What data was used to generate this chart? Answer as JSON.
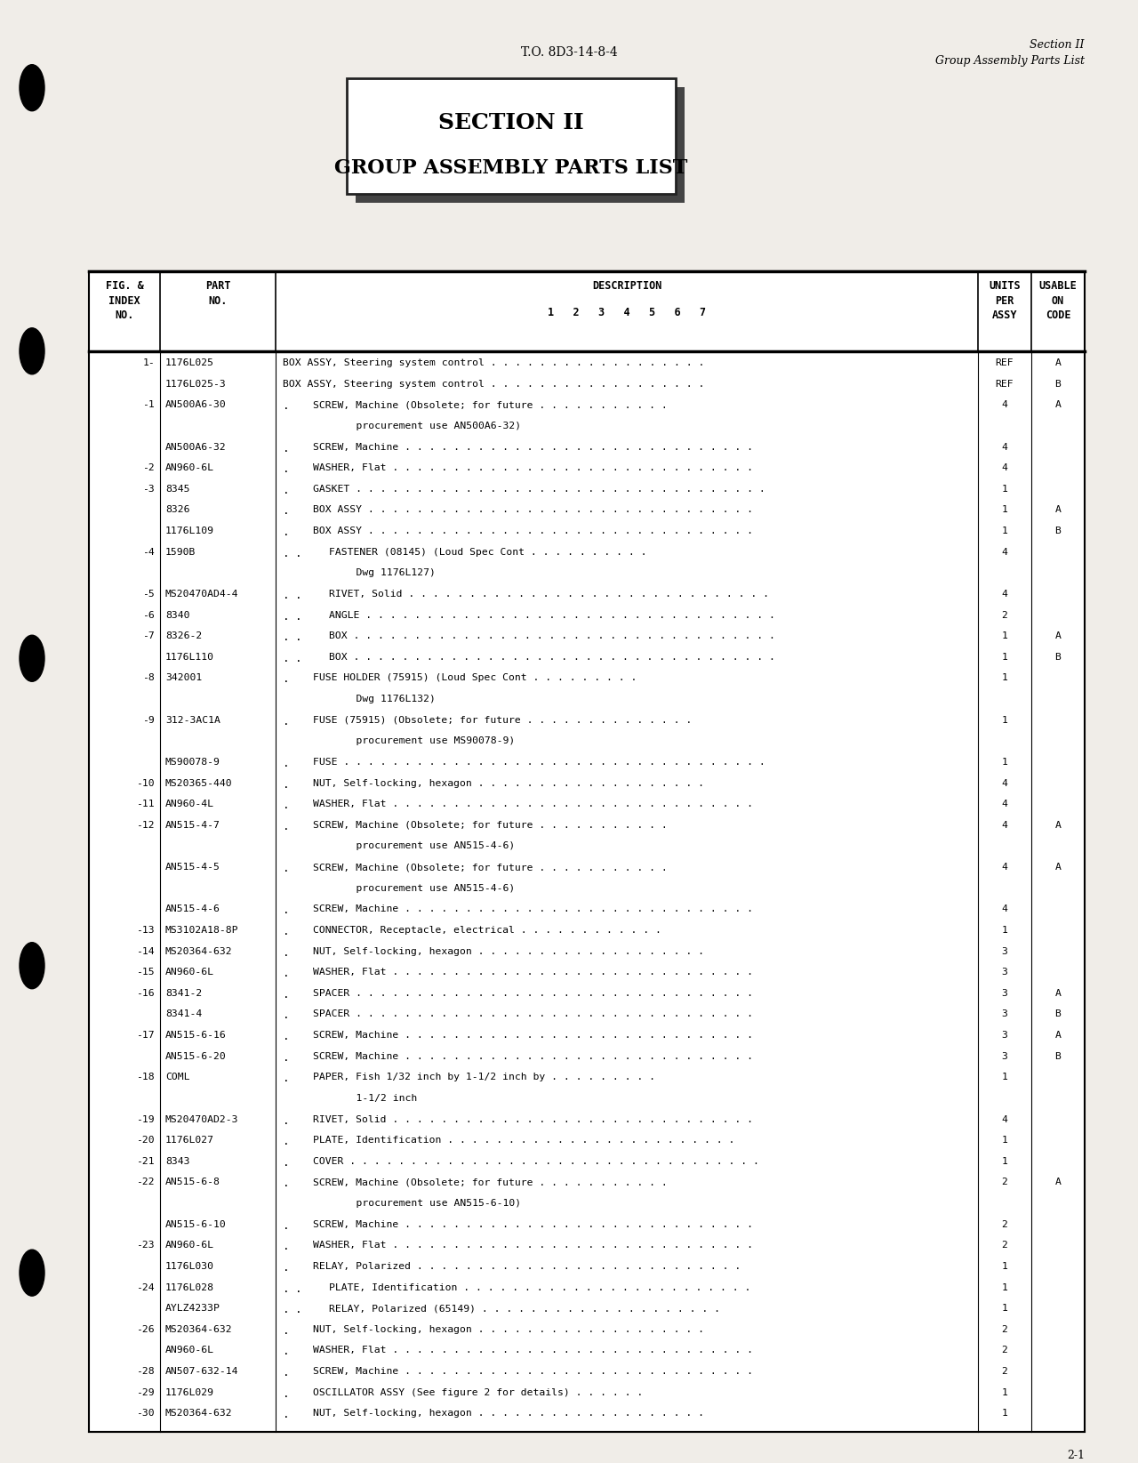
{
  "page_bg": "#f0ede8",
  "header_left": "T.O. 8D3-14-8-4",
  "header_right_line1": "Section II",
  "header_right_line2": "Group Assembly Parts List",
  "section_title_line1": "SECTION II",
  "section_title_line2": "GROUP ASSEMBLY PARTS LIST",
  "rows": [
    {
      "index": "1-",
      "part": "1176L025",
      "indent": 0,
      "desc": "BOX ASSY, Steering system control . . . . . . . . . . . . . . . . . .",
      "units": "REF",
      "usable": "A"
    },
    {
      "index": "",
      "part": "1176L025-3",
      "indent": 0,
      "desc": "BOX ASSY, Steering system control . . . . . . . . . . . . . . . . . .",
      "units": "REF",
      "usable": "B"
    },
    {
      "index": "-1",
      "part": "AN500A6-30",
      "indent": 1,
      "desc": "SCREW, Machine (Obsolete; for future . . . . . . . . . . .",
      "units": "4",
      "usable": "A"
    },
    {
      "index": "",
      "part": "",
      "indent": 0,
      "desc": "            procurement use AN500A6-32)",
      "units": "",
      "usable": ""
    },
    {
      "index": "",
      "part": "AN500A6-32",
      "indent": 1,
      "desc": "SCREW, Machine . . . . . . . . . . . . . . . . . . . . . . . . . . . . .",
      "units": "4",
      "usable": ""
    },
    {
      "index": "-2",
      "part": "AN960-6L",
      "indent": 1,
      "desc": "WASHER, Flat . . . . . . . . . . . . . . . . . . . . . . . . . . . . . .",
      "units": "4",
      "usable": ""
    },
    {
      "index": "-3",
      "part": "8345",
      "indent": 1,
      "desc": "GASKET . . . . . . . . . . . . . . . . . . . . . . . . . . . . . . . . . .",
      "units": "1",
      "usable": ""
    },
    {
      "index": "",
      "part": "8326",
      "indent": 1,
      "desc": "BOX ASSY . . . . . . . . . . . . . . . . . . . . . . . . . . . . . . . .",
      "units": "1",
      "usable": "A"
    },
    {
      "index": "",
      "part": "1176L109",
      "indent": 1,
      "desc": "BOX ASSY . . . . . . . . . . . . . . . . . . . . . . . . . . . . . . . .",
      "units": "1",
      "usable": "B"
    },
    {
      "index": "-4",
      "part": "1590B",
      "indent": 2,
      "desc": "FASTENER (08145) (Loud Spec Cont . . . . . . . . . .",
      "units": "4",
      "usable": ""
    },
    {
      "index": "",
      "part": "",
      "indent": 0,
      "desc": "            Dwg 1176L127)",
      "units": "",
      "usable": ""
    },
    {
      "index": "-5",
      "part": "MS20470AD4-4",
      "indent": 2,
      "desc": "RIVET, Solid . . . . . . . . . . . . . . . . . . . . . . . . . . . . . .",
      "units": "4",
      "usable": ""
    },
    {
      "index": "-6",
      "part": "8340",
      "indent": 2,
      "desc": "ANGLE . . . . . . . . . . . . . . . . . . . . . . . . . . . . . . . . . .",
      "units": "2",
      "usable": ""
    },
    {
      "index": "-7",
      "part": "8326-2",
      "indent": 2,
      "desc": "BOX . . . . . . . . . . . . . . . . . . . . . . . . . . . . . . . . . . .",
      "units": "1",
      "usable": "A"
    },
    {
      "index": "",
      "part": "1176L110",
      "indent": 2,
      "desc": "BOX . . . . . . . . . . . . . . . . . . . . . . . . . . . . . . . . . . .",
      "units": "1",
      "usable": "B"
    },
    {
      "index": "-8",
      "part": "342001",
      "indent": 1,
      "desc": "FUSE HOLDER (75915) (Loud Spec Cont . . . . . . . . .",
      "units": "1",
      "usable": ""
    },
    {
      "index": "",
      "part": "",
      "indent": 0,
      "desc": "            Dwg 1176L132)",
      "units": "",
      "usable": ""
    },
    {
      "index": "-9",
      "part": "312-3AC1A",
      "indent": 1,
      "desc": "FUSE (75915) (Obsolete; for future . . . . . . . . . . . . . .",
      "units": "1",
      "usable": ""
    },
    {
      "index": "",
      "part": "",
      "indent": 0,
      "desc": "            procurement use MS90078-9)",
      "units": "",
      "usable": ""
    },
    {
      "index": "",
      "part": "MS90078-9",
      "indent": 1,
      "desc": "FUSE . . . . . . . . . . . . . . . . . . . . . . . . . . . . . . . . . . .",
      "units": "1",
      "usable": ""
    },
    {
      "index": "-10",
      "part": "MS20365-440",
      "indent": 1,
      "desc": "NUT, Self-locking, hexagon . . . . . . . . . . . . . . . . . . .",
      "units": "4",
      "usable": ""
    },
    {
      "index": "-11",
      "part": "AN960-4L",
      "indent": 1,
      "desc": "WASHER, Flat . . . . . . . . . . . . . . . . . . . . . . . . . . . . . .",
      "units": "4",
      "usable": ""
    },
    {
      "index": "-12",
      "part": "AN515-4-7",
      "indent": 1,
      "desc": "SCREW, Machine (Obsolete; for future . . . . . . . . . . .",
      "units": "4",
      "usable": "A"
    },
    {
      "index": "",
      "part": "",
      "indent": 0,
      "desc": "            procurement use AN515-4-6)",
      "units": "",
      "usable": ""
    },
    {
      "index": "",
      "part": "AN515-4-5",
      "indent": 1,
      "desc": "SCREW, Machine (Obsolete; for future . . . . . . . . . . .",
      "units": "4",
      "usable": "A"
    },
    {
      "index": "",
      "part": "",
      "indent": 0,
      "desc": "            procurement use AN515-4-6)",
      "units": "",
      "usable": ""
    },
    {
      "index": "",
      "part": "AN515-4-6",
      "indent": 1,
      "desc": "SCREW, Machine . . . . . . . . . . . . . . . . . . . . . . . . . . . . .",
      "units": "4",
      "usable": ""
    },
    {
      "index": "-13",
      "part": "MS3102A18-8P",
      "indent": 1,
      "desc": "CONNECTOR, Receptacle, electrical . . . . . . . . . . . .",
      "units": "1",
      "usable": ""
    },
    {
      "index": "-14",
      "part": "MS20364-632",
      "indent": 1,
      "desc": "NUT, Self-locking, hexagon . . . . . . . . . . . . . . . . . . .",
      "units": "3",
      "usable": ""
    },
    {
      "index": "-15",
      "part": "AN960-6L",
      "indent": 1,
      "desc": "WASHER, Flat . . . . . . . . . . . . . . . . . . . . . . . . . . . . . .",
      "units": "3",
      "usable": ""
    },
    {
      "index": "-16",
      "part": "8341-2",
      "indent": 1,
      "desc": "SPACER . . . . . . . . . . . . . . . . . . . . . . . . . . . . . . . . .",
      "units": "3",
      "usable": "A"
    },
    {
      "index": "",
      "part": "8341-4",
      "indent": 1,
      "desc": "SPACER . . . . . . . . . . . . . . . . . . . . . . . . . . . . . . . . .",
      "units": "3",
      "usable": "B"
    },
    {
      "index": "-17",
      "part": "AN515-6-16",
      "indent": 1,
      "desc": "SCREW, Machine . . . . . . . . . . . . . . . . . . . . . . . . . . . . .",
      "units": "3",
      "usable": "A"
    },
    {
      "index": "",
      "part": "AN515-6-20",
      "indent": 1,
      "desc": "SCREW, Machine . . . . . . . . . . . . . . . . . . . . . . . . . . . . .",
      "units": "3",
      "usable": "B"
    },
    {
      "index": "-18",
      "part": "COML",
      "indent": 1,
      "desc": "PAPER, Fish 1/32 inch by 1-1/2 inch by . . . . . . . . .",
      "units": "1",
      "usable": ""
    },
    {
      "index": "",
      "part": "",
      "indent": 0,
      "desc": "            1-1/2 inch",
      "units": "",
      "usable": ""
    },
    {
      "index": "-19",
      "part": "MS20470AD2-3",
      "indent": 1,
      "desc": "RIVET, Solid . . . . . . . . . . . . . . . . . . . . . . . . . . . . . .",
      "units": "4",
      "usable": ""
    },
    {
      "index": "-20",
      "part": "1176L027",
      "indent": 1,
      "desc": "PLATE, Identification . . . . . . . . . . . . . . . . . . . . . . . .",
      "units": "1",
      "usable": ""
    },
    {
      "index": "-21",
      "part": "8343",
      "indent": 1,
      "desc": "COVER . . . . . . . . . . . . . . . . . . . . . . . . . . . . . . . . . .",
      "units": "1",
      "usable": ""
    },
    {
      "index": "-22",
      "part": "AN515-6-8",
      "indent": 1,
      "desc": "SCREW, Machine (Obsolete; for future . . . . . . . . . . .",
      "units": "2",
      "usable": "A"
    },
    {
      "index": "",
      "part": "",
      "indent": 0,
      "desc": "            procurement use AN515-6-10)",
      "units": "",
      "usable": ""
    },
    {
      "index": "",
      "part": "AN515-6-10",
      "indent": 1,
      "desc": "SCREW, Machine . . . . . . . . . . . . . . . . . . . . . . . . . . . . .",
      "units": "2",
      "usable": ""
    },
    {
      "index": "-23",
      "part": "AN960-6L",
      "indent": 1,
      "desc": "WASHER, Flat . . . . . . . . . . . . . . . . . . . . . . . . . . . . . .",
      "units": "2",
      "usable": ""
    },
    {
      "index": "",
      "part": "1176L030",
      "indent": 1,
      "desc": "RELAY, Polarized . . . . . . . . . . . . . . . . . . . . . . . . . . .",
      "units": "1",
      "usable": ""
    },
    {
      "index": "-24",
      "part": "1176L028",
      "indent": 2,
      "desc": "PLATE, Identification . . . . . . . . . . . . . . . . . . . . . . . .",
      "units": "1",
      "usable": ""
    },
    {
      "index": "",
      "part": "AYLZ4233P",
      "indent": 2,
      "desc": "RELAY, Polarized (65149) . . . . . . . . . . . . . . . . . . . .",
      "units": "1",
      "usable": ""
    },
    {
      "index": "-26",
      "part": "MS20364-632",
      "indent": 1,
      "desc": "NUT, Self-locking, hexagon . . . . . . . . . . . . . . . . . . .",
      "units": "2",
      "usable": ""
    },
    {
      "index": "",
      "part": "AN960-6L",
      "indent": 1,
      "desc": "WASHER, Flat . . . . . . . . . . . . . . . . . . . . . . . . . . . . . .",
      "units": "2",
      "usable": ""
    },
    {
      "index": "-28",
      "part": "AN507-632-14",
      "indent": 1,
      "desc": "SCREW, Machine . . . . . . . . . . . . . . . . . . . . . . . . . . . . .",
      "units": "2",
      "usable": ""
    },
    {
      "index": "-29",
      "part": "1176L029",
      "indent": 1,
      "desc": "OSCILLATOR ASSY (See figure 2 for details) . . . . . .",
      "units": "1",
      "usable": ""
    },
    {
      "index": "-30",
      "part": "MS20364-632",
      "indent": 1,
      "desc": "NUT, Self-locking, hexagon . . . . . . . . . . . . . . . . . . .",
      "units": "1",
      "usable": ""
    }
  ],
  "footer_page": "2-1"
}
